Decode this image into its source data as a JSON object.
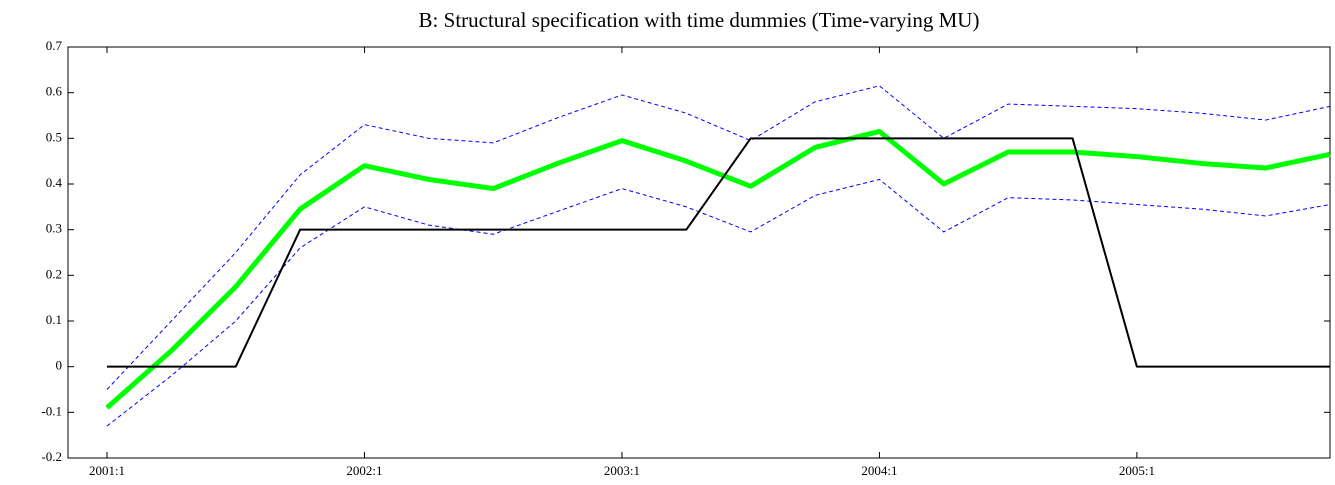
{
  "chart_data": {
    "type": "line",
    "title": "B: Structural specification with time dummies (Time-varying MU)",
    "categories": [
      "2001:1",
      null,
      null,
      null,
      "2002:1",
      null,
      null,
      null,
      "2003:1",
      null,
      null,
      null,
      "2004:1",
      null,
      null,
      null,
      "2005:1",
      null,
      null,
      null
    ],
    "series": [
      {
        "color": "#0000ff",
        "dash": true,
        "width": 1,
        "values": [
          -0.05,
          0.1,
          0.25,
          0.42,
          0.53,
          0.5,
          0.49,
          0.545,
          0.595,
          0.555,
          0.495,
          0.58,
          0.615,
          0.5,
          0.575,
          0.57,
          0.565,
          0.555,
          0.54,
          0.57
        ]
      },
      {
        "color": "#0000ff",
        "dash": true,
        "width": 1,
        "values": [
          -0.13,
          -0.02,
          0.1,
          0.26,
          0.35,
          0.31,
          0.29,
          0.34,
          0.39,
          0.35,
          0.295,
          0.375,
          0.41,
          0.295,
          0.37,
          0.365,
          0.355,
          0.345,
          0.33,
          0.355
        ]
      },
      {
        "color": "#00ff00",
        "dash": false,
        "width": 5,
        "values": [
          -0.09,
          0.035,
          0.175,
          0.345,
          0.44,
          0.41,
          0.39,
          0.445,
          0.495,
          0.45,
          0.395,
          0.48,
          0.515,
          0.4,
          0.47,
          0.47,
          0.46,
          0.445,
          0.435,
          0.465
        ]
      },
      {
        "color": "#000000",
        "dash": false,
        "width": 2,
        "values": [
          0,
          0,
          0,
          0.3,
          0.3,
          0.3,
          0.3,
          0.3,
          0.3,
          0.3,
          0.5,
          0.5,
          0.5,
          0.5,
          0.5,
          0.5,
          0,
          0,
          0,
          0
        ]
      }
    ],
    "ylim": [
      -0.2,
      0.7
    ],
    "yticks": [
      -0.2,
      -0.1,
      0,
      0.1,
      0.2,
      0.3,
      0.4,
      0.5,
      0.6,
      0.7
    ],
    "grid": false
  }
}
